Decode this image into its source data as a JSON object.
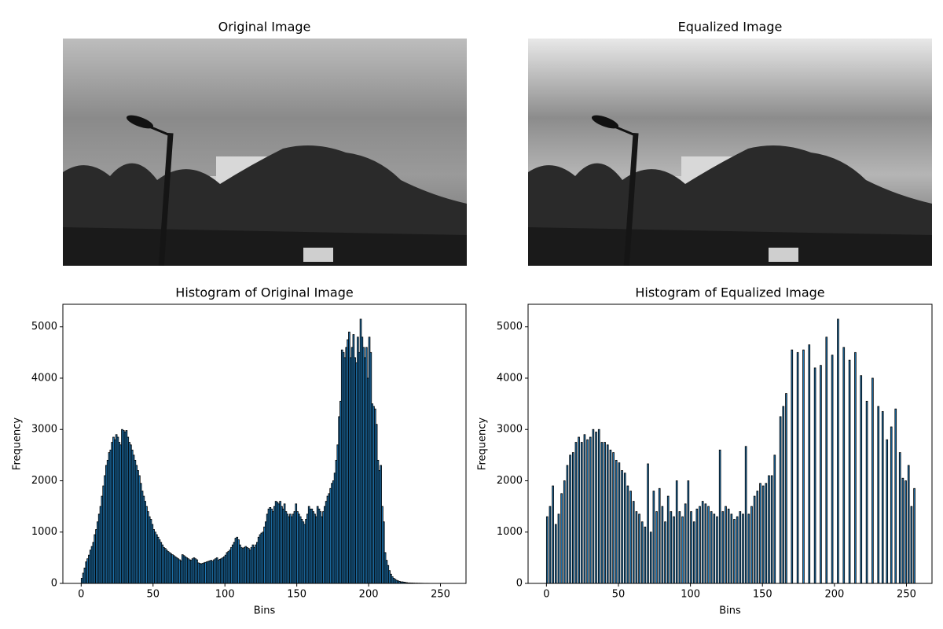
{
  "chart_data": [
    {
      "type": "image",
      "title": "Original Image"
    },
    {
      "type": "image",
      "title": "Equalized Image"
    },
    {
      "type": "histogram",
      "title": "Histogram of Original Image",
      "x_label": "Bins",
      "y_label": "Frequency",
      "color": "#1f77b4",
      "edgecolor": "#000000",
      "xlim": [
        -12.75,
        267.75
      ],
      "ylim": [
        0,
        5440
      ],
      "xticks": [
        0,
        50,
        100,
        150,
        200,
        250
      ],
      "yticks": [
        0,
        1000,
        2000,
        3000,
        4000,
        5000
      ],
      "bins": [
        0,
        1,
        2,
        3,
        4,
        5,
        6,
        7,
        8,
        9,
        10,
        11,
        12,
        13,
        14,
        15,
        16,
        17,
        18,
        19,
        20,
        21,
        22,
        23,
        24,
        25,
        26,
        27,
        28,
        29,
        30,
        31,
        32,
        33,
        34,
        35,
        36,
        37,
        38,
        39,
        40,
        41,
        42,
        43,
        44,
        45,
        46,
        47,
        48,
        49,
        50,
        51,
        52,
        53,
        54,
        55,
        56,
        57,
        58,
        59,
        60,
        61,
        62,
        63,
        64,
        65,
        66,
        67,
        68,
        69,
        70,
        71,
        72,
        73,
        74,
        75,
        76,
        77,
        78,
        79,
        80,
        81,
        82,
        83,
        84,
        85,
        86,
        87,
        88,
        89,
        90,
        91,
        92,
        93,
        94,
        95,
        96,
        97,
        98,
        99,
        100,
        101,
        102,
        103,
        104,
        105,
        106,
        107,
        108,
        109,
        110,
        111,
        112,
        113,
        114,
        115,
        116,
        117,
        118,
        119,
        120,
        121,
        122,
        123,
        124,
        125,
        126,
        127,
        128,
        129,
        130,
        131,
        132,
        133,
        134,
        135,
        136,
        137,
        138,
        139,
        140,
        141,
        142,
        143,
        144,
        145,
        146,
        147,
        148,
        149,
        150,
        151,
        152,
        153,
        154,
        155,
        156,
        157,
        158,
        159,
        160,
        161,
        162,
        163,
        164,
        165,
        166,
        167,
        168,
        169,
        170,
        171,
        172,
        173,
        174,
        175,
        176,
        177,
        178,
        179,
        180,
        181,
        182,
        183,
        184,
        185,
        186,
        187,
        188,
        189,
        190,
        191,
        192,
        193,
        194,
        195,
        196,
        197,
        198,
        199,
        200,
        201,
        202,
        203,
        204,
        205,
        206,
        207,
        208,
        209,
        210,
        211,
        212,
        213,
        214,
        215,
        216,
        217,
        218,
        219,
        220,
        221,
        222,
        223,
        224,
        225,
        226,
        227,
        228,
        229,
        230,
        231,
        232,
        233,
        234,
        235,
        236,
        237,
        238,
        239,
        240,
        241,
        242,
        243,
        244,
        245,
        246,
        247,
        248,
        249,
        250,
        251,
        252,
        253,
        254,
        255,
        256
      ],
      "counts": [
        100,
        200,
        300,
        420,
        480,
        550,
        650,
        720,
        800,
        950,
        1050,
        1200,
        1350,
        1500,
        1700,
        1900,
        2100,
        2300,
        2400,
        2550,
        2600,
        2750,
        2850,
        2800,
        2900,
        2850,
        2750,
        2700,
        3000,
        2980,
        2950,
        2980,
        2850,
        2750,
        2700,
        2600,
        2500,
        2400,
        2300,
        2200,
        2100,
        1950,
        1800,
        1700,
        1600,
        1500,
        1400,
        1300,
        1250,
        1150,
        1050,
        1000,
        950,
        900,
        850,
        800,
        750,
        700,
        680,
        650,
        620,
        600,
        580,
        560,
        540,
        520,
        500,
        480,
        460,
        440,
        560,
        540,
        520,
        500,
        480,
        460,
        450,
        480,
        500,
        480,
        460,
        400,
        390,
        380,
        390,
        400,
        410,
        420,
        430,
        440,
        450,
        430,
        460,
        480,
        500,
        450,
        470,
        480,
        500,
        520,
        550,
        600,
        620,
        650,
        700,
        750,
        800,
        880,
        900,
        850,
        750,
        700,
        680,
        700,
        720,
        700,
        680,
        650,
        700,
        750,
        700,
        750,
        800,
        900,
        950,
        980,
        1000,
        1100,
        1200,
        1350,
        1450,
        1480,
        1450,
        1400,
        1500,
        1600,
        1580,
        1550,
        1600,
        1500,
        1450,
        1550,
        1400,
        1350,
        1300,
        1350,
        1300,
        1350,
        1400,
        1550,
        1400,
        1350,
        1300,
        1250,
        1200,
        1150,
        1250,
        1350,
        1500,
        1450,
        1450,
        1400,
        1350,
        1300,
        1500,
        1450,
        1400,
        1300,
        1400,
        1500,
        1600,
        1700,
        1750,
        1850,
        1950,
        2000,
        2150,
        2400,
        2700,
        3250,
        3550,
        4550,
        4500,
        4400,
        4600,
        4750,
        4900,
        4400,
        4600,
        4850,
        4400,
        4300,
        4800,
        4500,
        5150,
        4800,
        4600,
        4400,
        4600,
        4000,
        4800,
        4500,
        3500,
        3450,
        3400,
        3100,
        2400,
        2200,
        2300,
        1500,
        1200,
        600,
        450,
        350,
        250,
        180,
        130,
        100,
        80,
        60,
        50,
        40,
        30,
        30,
        25,
        20,
        15,
        10,
        10,
        8,
        8,
        6,
        5,
        5,
        4,
        4,
        3,
        3,
        2,
        2,
        2,
        2,
        1,
        1,
        1,
        1,
        1,
        0,
        0,
        0,
        0,
        0,
        0,
        0,
        0,
        0
      ]
    },
    {
      "type": "histogram",
      "title": "Histogram of Equalized Image",
      "x_label": "Bins",
      "y_label": "Frequency",
      "color": "#1f77b4",
      "edgecolor": "#000000",
      "xlim": [
        -12.75,
        267.75
      ],
      "ylim": [
        0,
        5440
      ],
      "xticks": [
        0,
        50,
        100,
        150,
        200,
        250
      ],
      "yticks": [
        0,
        1000,
        2000,
        3000,
        4000,
        5000
      ],
      "bins": [
        0,
        1,
        2,
        3,
        4,
        5,
        6,
        7,
        8,
        9,
        10,
        11,
        12,
        13,
        14,
        15,
        16,
        17,
        18,
        19,
        20,
        21,
        22,
        23,
        24,
        25,
        26,
        27,
        28,
        29,
        30,
        31,
        32,
        33,
        34,
        35,
        36,
        37,
        38,
        39,
        40,
        41,
        42,
        43,
        44,
        45,
        46,
        47,
        48,
        49,
        50,
        51,
        52,
        53,
        54,
        55,
        56,
        57,
        58,
        59,
        60,
        61,
        62,
        63,
        64,
        65,
        66,
        67,
        68,
        69,
        70,
        71,
        72,
        73,
        74,
        75,
        76,
        77,
        78,
        79,
        80,
        81,
        82,
        83,
        84,
        85,
        86,
        87,
        88,
        89,
        90,
        91,
        92,
        93,
        94,
        95,
        96,
        97,
        98,
        99,
        100,
        101,
        102,
        103,
        104,
        105,
        106,
        107,
        108,
        109,
        110,
        111,
        112,
        113,
        114,
        115,
        116,
        117,
        118,
        119,
        120,
        121,
        122,
        123,
        124,
        125,
        126,
        127,
        128,
        129,
        130,
        131,
        132,
        133,
        134,
        135,
        136,
        137,
        138,
        139,
        140,
        141,
        142,
        143,
        144,
        145,
        146,
        147,
        148,
        149,
        150,
        151,
        152,
        153,
        154,
        155,
        156,
        157,
        158,
        159,
        160,
        161,
        162,
        163,
        164,
        165,
        166,
        167,
        168,
        169,
        170,
        171,
        172,
        173,
        174,
        175,
        176,
        177,
        178,
        179,
        180,
        181,
        182,
        183,
        184,
        185,
        186,
        187,
        188,
        189,
        190,
        191,
        192,
        193,
        194,
        195,
        196,
        197,
        198,
        199,
        200,
        201,
        202,
        203,
        204,
        205,
        206,
        207,
        208,
        209,
        210,
        211,
        212,
        213,
        214,
        215,
        216,
        217,
        218,
        219,
        220,
        221,
        222,
        223,
        224,
        225,
        226,
        227,
        228,
        229,
        230,
        231,
        232,
        233,
        234,
        235,
        236,
        237,
        238,
        239,
        240,
        241,
        242,
        243,
        244,
        245,
        246,
        247,
        248,
        249,
        250,
        251,
        252,
        253,
        254,
        255,
        256
      ],
      "counts": [
        1300,
        0,
        1500,
        0,
        1900,
        0,
        1150,
        0,
        1350,
        0,
        1750,
        0,
        2000,
        0,
        2300,
        0,
        2500,
        0,
        2550,
        0,
        2750,
        0,
        2850,
        0,
        2750,
        0,
        2900,
        0,
        2800,
        0,
        2850,
        0,
        3000,
        0,
        2950,
        0,
        3000,
        0,
        2750,
        0,
        2750,
        0,
        2700,
        0,
        2600,
        0,
        2550,
        0,
        2400,
        0,
        2350,
        0,
        2200,
        0,
        2150,
        0,
        1900,
        0,
        1800,
        0,
        1600,
        0,
        1400,
        0,
        1350,
        0,
        1200,
        0,
        1100,
        0,
        2330,
        0,
        1000,
        0,
        1800,
        0,
        1400,
        0,
        1850,
        0,
        1500,
        0,
        1200,
        0,
        1700,
        0,
        1400,
        0,
        1300,
        0,
        2000,
        0,
        1400,
        0,
        1300,
        0,
        1550,
        0,
        2000,
        0,
        1400,
        0,
        1200,
        0,
        1450,
        0,
        1500,
        0,
        1600,
        0,
        1550,
        0,
        1500,
        0,
        1400,
        0,
        1350,
        0,
        1300,
        0,
        2600,
        0,
        1400,
        0,
        1500,
        0,
        1450,
        0,
        1350,
        0,
        1250,
        0,
        1300,
        0,
        1400,
        0,
        1350,
        0,
        2670,
        0,
        1350,
        0,
        1500,
        0,
        1700,
        0,
        1800,
        0,
        1950,
        0,
        1900,
        0,
        1950,
        0,
        2100,
        0,
        2100,
        0,
        2500,
        0,
        0,
        0,
        3250,
        0,
        3450,
        0,
        3700,
        0,
        0,
        0,
        4550,
        0,
        0,
        0,
        4500,
        0,
        0,
        0,
        4550,
        0,
        0,
        0,
        4650,
        0,
        0,
        0,
        4200,
        0,
        0,
        0,
        4250,
        0,
        0,
        0,
        4800,
        0,
        0,
        0,
        4450,
        0,
        0,
        0,
        5150,
        0,
        0,
        0,
        4600,
        0,
        0,
        0,
        4350,
        0,
        0,
        0,
        4500,
        0,
        0,
        0,
        4050,
        0,
        0,
        0,
        3550,
        0,
        0,
        0,
        4000,
        0,
        0,
        0,
        3450,
        0,
        0,
        3350,
        0,
        0,
        2800,
        0,
        0,
        3050,
        0,
        0,
        3400,
        0,
        0,
        2550,
        0,
        2050,
        0,
        2000,
        0,
        2300,
        0,
        1500,
        0,
        1850
      ]
    }
  ]
}
